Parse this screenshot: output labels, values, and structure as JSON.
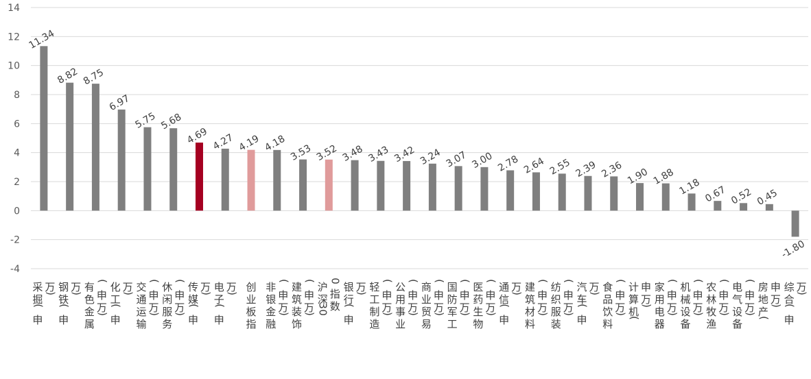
{
  "chart_data": {
    "type": "bar",
    "title": "",
    "xlabel": "",
    "ylabel": "",
    "ylim": [
      -4,
      14
    ],
    "yticks": [
      -4,
      -2,
      0,
      2,
      4,
      6,
      8,
      10,
      12,
      14
    ],
    "grid": true,
    "legend": "none",
    "categories": [
      "采掘(申万)",
      "钢铁(申万)",
      "有色金属(申万)",
      "化工(申万)",
      "交通运输(申万)",
      "休闲服务(申万)",
      "传媒(申万)",
      "电子(申万)",
      "创业板指",
      "非银金融(申万)",
      "建筑装饰(申万)",
      "沪深300指数",
      "银行(申万)",
      "轻工制造(申万)",
      "公用事业(申万)",
      "商业贸易(申万)",
      "国防军工(申万)",
      "医药生物(申万)",
      "通信(申万)",
      "建筑材料(申万)",
      "纺织服装(申万)",
      "汽车(申万)",
      "食品饮料(申万)",
      "计算机(申万)",
      "家用电器(申万)",
      "机械设备(申万)",
      "农林牧渔(申万)",
      "电气设备(申万)",
      "房地产(申万)",
      "综合(申万)"
    ],
    "values": [
      11.34,
      8.82,
      8.75,
      6.97,
      5.75,
      5.68,
      4.69,
      4.27,
      4.19,
      4.18,
      3.53,
      3.52,
      3.48,
      3.43,
      3.42,
      3.24,
      3.07,
      3.0,
      2.78,
      2.64,
      2.55,
      2.39,
      2.36,
      1.9,
      1.88,
      1.18,
      0.67,
      0.52,
      0.45,
      -1.8
    ],
    "value_labels": [
      "11.34",
      "8.82",
      "8.75",
      "6.97",
      "5.75",
      "5.68",
      "4.69",
      "4.27",
      "4.19",
      "4.18",
      "3.53",
      "3.52",
      "3.48",
      "3.43",
      "3.42",
      "3.24",
      "3.07",
      "3.00",
      "2.78",
      "2.64",
      "2.55",
      "2.39",
      "2.36",
      "1.90",
      "1.88",
      "1.18",
      "0.67",
      "0.52",
      "0.45",
      "-1.80"
    ],
    "colors": {
      "default": "#7f7f7f",
      "highlight": "#a50021",
      "benchmark": "#e09b9b"
    },
    "bar_colors": [
      "default",
      "default",
      "default",
      "default",
      "default",
      "default",
      "highlight",
      "default",
      "benchmark",
      "default",
      "default",
      "benchmark",
      "default",
      "default",
      "default",
      "default",
      "default",
      "default",
      "default",
      "default",
      "default",
      "default",
      "default",
      "default",
      "default",
      "default",
      "default",
      "default",
      "default",
      "default"
    ]
  }
}
